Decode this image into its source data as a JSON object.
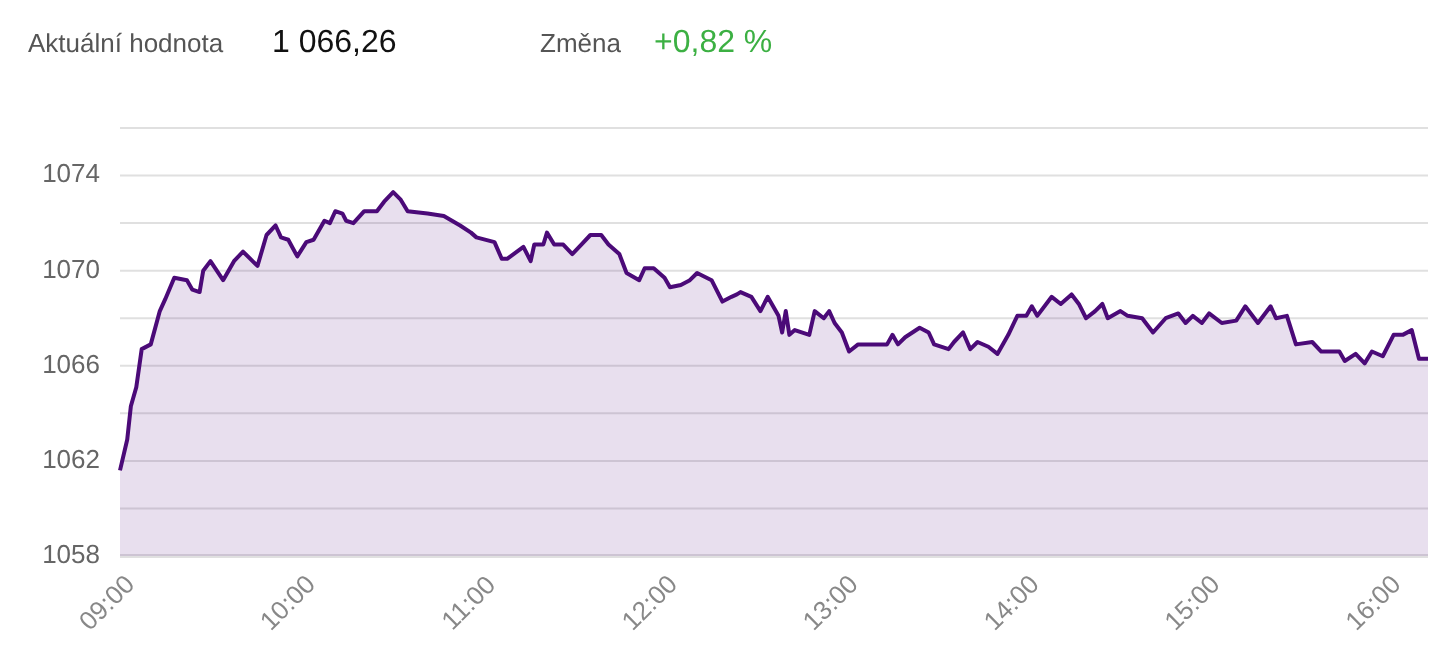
{
  "chart_data": {
    "type": "area",
    "annotations": [
      "Aktuální hodnota",
      "1 066,26",
      "Změna",
      "+0,82 %"
    ],
    "x": [
      9.0,
      9.04,
      9.06,
      9.09,
      9.12,
      9.17,
      9.22,
      9.25,
      9.3,
      9.37,
      9.4,
      9.44,
      9.46,
      9.5,
      9.57,
      9.63,
      9.68,
      9.76,
      9.81,
      9.86,
      9.89,
      9.93,
      9.98,
      10.03,
      10.07,
      10.13,
      10.16,
      10.19,
      10.23,
      10.25,
      10.29,
      10.35,
      10.42,
      10.46,
      10.51,
      10.55,
      10.59,
      10.7,
      10.79,
      10.88,
      10.94,
      10.97,
      11.07,
      11.11,
      11.14,
      11.23,
      11.27,
      11.29,
      11.34,
      11.36,
      11.4,
      11.45,
      11.5,
      11.55,
      11.6,
      11.66,
      11.7,
      11.76,
      11.8,
      11.87,
      11.9,
      11.95,
      12.01,
      12.04,
      12.1,
      12.15,
      12.19,
      12.27,
      12.33,
      12.38,
      12.41,
      12.43,
      12.49,
      12.54,
      12.58,
      12.64,
      12.66,
      12.68,
      12.7,
      12.73,
      12.81,
      12.84,
      12.89,
      12.92,
      12.95,
      12.99,
      13.03,
      13.08,
      13.24,
      13.27,
      13.3,
      13.34,
      13.42,
      13.47,
      13.5,
      13.58,
      13.61,
      13.66,
      13.7,
      13.74,
      13.8,
      13.85,
      13.91,
      13.96,
      14.01,
      14.04,
      14.07,
      14.15,
      14.2,
      14.26,
      14.3,
      14.34,
      14.39,
      14.43,
      14.46,
      14.53,
      14.57,
      14.65,
      14.71,
      14.78,
      14.85,
      14.89,
      14.93,
      14.98,
      15.02,
      15.09,
      15.17,
      15.22,
      15.29,
      15.36,
      15.39,
      15.45,
      15.5,
      15.59,
      15.64,
      15.74,
      15.77,
      15.83,
      15.88,
      15.92,
      15.98,
      16.04,
      16.09,
      16.14,
      16.18,
      16.23
    ],
    "series": [
      {
        "color": "#4b0a78",
        "values": [
          1061.6,
          1062.9,
          1064.3,
          1065.1,
          1066.7,
          1066.9,
          1068.3,
          1068.8,
          1069.7,
          1069.6,
          1069.2,
          1069.1,
          1070.0,
          1070.4,
          1069.6,
          1070.4,
          1070.8,
          1070.2,
          1071.5,
          1071.9,
          1071.4,
          1071.3,
          1070.6,
          1071.2,
          1071.3,
          1072.1,
          1072.0,
          1072.5,
          1072.4,
          1072.1,
          1072.0,
          1072.5,
          1072.5,
          1072.9,
          1073.3,
          1073.0,
          1072.5,
          1072.4,
          1072.3,
          1071.9,
          1071.6,
          1071.4,
          1071.2,
          1070.5,
          1070.5,
          1071.0,
          1070.4,
          1071.1,
          1071.1,
          1071.6,
          1071.1,
          1071.1,
          1070.7,
          1071.1,
          1071.5,
          1071.5,
          1071.1,
          1070.7,
          1069.9,
          1069.6,
          1070.1,
          1070.1,
          1069.7,
          1069.3,
          1069.4,
          1069.6,
          1069.9,
          1069.6,
          1068.7,
          1068.9,
          1069.0,
          1069.1,
          1068.9,
          1068.3,
          1068.9,
          1068.1,
          1067.4,
          1068.3,
          1067.3,
          1067.5,
          1067.3,
          1068.3,
          1068.0,
          1068.3,
          1067.8,
          1067.4,
          1066.6,
          1066.9,
          1066.9,
          1067.3,
          1066.9,
          1067.2,
          1067.6,
          1067.4,
          1066.9,
          1066.7,
          1067.0,
          1067.4,
          1066.7,
          1067.0,
          1066.8,
          1066.5,
          1067.3,
          1068.1,
          1068.1,
          1068.5,
          1068.1,
          1068.9,
          1068.6,
          1069.0,
          1068.6,
          1068.0,
          1068.3,
          1068.6,
          1068.0,
          1068.3,
          1068.1,
          1068.0,
          1067.4,
          1068.0,
          1068.2,
          1067.8,
          1068.1,
          1067.8,
          1068.2,
          1067.8,
          1067.9,
          1068.5,
          1067.8,
          1068.5,
          1068.0,
          1068.1,
          1066.9,
          1067.0,
          1066.6,
          1066.6,
          1066.2,
          1066.5,
          1066.1,
          1066.6,
          1066.4,
          1067.3,
          1067.3,
          1067.5,
          1066.3,
          1066.3
        ]
      }
    ],
    "xlim": [
      9,
      16.23
    ],
    "xticks": [
      {
        "value": 9,
        "label": "09:00"
      },
      {
        "value": 10,
        "label": "10:00"
      },
      {
        "value": 11,
        "label": "11:00"
      },
      {
        "value": 12,
        "label": "12:00"
      },
      {
        "value": 13,
        "label": "13:00"
      },
      {
        "value": 14,
        "label": "14:00"
      },
      {
        "value": 15,
        "label": "15:00"
      },
      {
        "value": 16,
        "label": "16:00"
      }
    ],
    "ylim": [
      1058,
      1076
    ],
    "yticks": [
      1058,
      {
        "value": 1060,
        "label": null
      },
      1062,
      {
        "value": 1064,
        "label": null
      },
      1066,
      {
        "value": 1068,
        "label": null
      },
      1070,
      {
        "value": 1072,
        "label": null
      },
      1074,
      {
        "value": 1076,
        "label": null
      }
    ],
    "grid": "y",
    "line_style": "solid",
    "marker": "none"
  }
}
